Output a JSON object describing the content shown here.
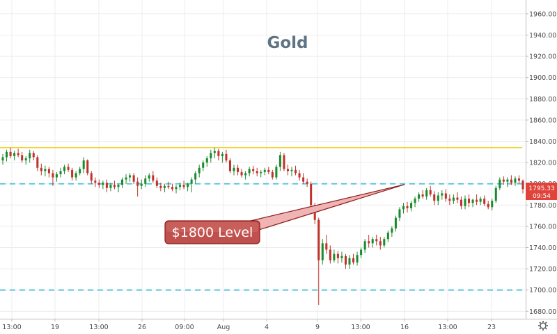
{
  "chart_data": {
    "type": "candlestick",
    "title": "Gold",
    "y_ticks": [
      1680,
      1700,
      1720,
      1740,
      1760,
      1780,
      1800,
      1820,
      1840,
      1860,
      1880,
      1900,
      1920,
      1940,
      1960
    ],
    "y_tick_labels": [
      "1680.00",
      "1700.00",
      "1720.00",
      "1740.00",
      "1760.00",
      "1780.00",
      "1800.00",
      "1820.00",
      "1840.00",
      "1860.00",
      "1880.00",
      "1900.00",
      "1920.00",
      "1940.00",
      "1960.00"
    ],
    "ylim": [
      1673,
      1973
    ],
    "x_tick_labels": [
      "13:00",
      "19",
      "13:00",
      "26",
      "09:00",
      "Aug",
      "4",
      "9",
      "13:00",
      "16",
      "13:00",
      "23"
    ],
    "horizontal_levels": [
      {
        "value": 1800,
        "style": "dashed",
        "color": "#4fc3d9"
      },
      {
        "value": 1700,
        "style": "dashed",
        "color": "#4fc3d9"
      },
      {
        "value": 1834,
        "style": "solid",
        "color": "#f2d024"
      }
    ],
    "annotation": {
      "text": "$1800 Level"
    },
    "last_price": {
      "value": "1795.33",
      "countdown": "09:54"
    },
    "candles": [
      [
        1822,
        1828,
        1818,
        1825
      ],
      [
        1825,
        1832,
        1821,
        1830
      ],
      [
        1830,
        1834,
        1824,
        1826
      ],
      [
        1826,
        1831,
        1822,
        1829
      ],
      [
        1829,
        1833,
        1825,
        1827
      ],
      [
        1827,
        1830,
        1820,
        1822
      ],
      [
        1822,
        1826,
        1818,
        1824
      ],
      [
        1824,
        1832,
        1820,
        1829
      ],
      [
        1829,
        1831,
        1822,
        1825
      ],
      [
        1825,
        1827,
        1812,
        1815
      ],
      [
        1815,
        1819,
        1808,
        1812
      ],
      [
        1812,
        1817,
        1807,
        1814
      ],
      [
        1814,
        1816,
        1806,
        1810
      ],
      [
        1810,
        1813,
        1798,
        1806
      ],
      [
        1806,
        1811,
        1802,
        1809
      ],
      [
        1809,
        1815,
        1806,
        1812
      ],
      [
        1812,
        1818,
        1809,
        1816
      ],
      [
        1816,
        1819,
        1811,
        1813
      ],
      [
        1813,
        1815,
        1803,
        1806
      ],
      [
        1806,
        1812,
        1803,
        1810
      ],
      [
        1810,
        1816,
        1808,
        1814
      ],
      [
        1814,
        1825,
        1810,
        1822
      ],
      [
        1822,
        1823,
        1808,
        1810
      ],
      [
        1810,
        1812,
        1800,
        1803
      ],
      [
        1803,
        1806,
        1797,
        1801
      ],
      [
        1801,
        1804,
        1796,
        1799
      ],
      [
        1799,
        1803,
        1795,
        1801
      ],
      [
        1801,
        1804,
        1792,
        1796
      ],
      [
        1796,
        1801,
        1793,
        1799
      ],
      [
        1799,
        1803,
        1795,
        1797
      ],
      [
        1797,
        1800,
        1792,
        1799
      ],
      [
        1799,
        1806,
        1796,
        1804
      ],
      [
        1804,
        1809,
        1800,
        1806
      ],
      [
        1806,
        1810,
        1802,
        1808
      ],
      [
        1808,
        1810,
        1800,
        1802
      ],
      [
        1802,
        1806,
        1788,
        1798
      ],
      [
        1798,
        1804,
        1795,
        1800
      ],
      [
        1800,
        1808,
        1797,
        1805
      ],
      [
        1805,
        1810,
        1802,
        1808
      ],
      [
        1808,
        1812,
        1801,
        1803
      ],
      [
        1803,
        1806,
        1796,
        1798
      ],
      [
        1798,
        1801,
        1793,
        1796
      ],
      [
        1796,
        1800,
        1792,
        1798
      ],
      [
        1798,
        1802,
        1795,
        1797
      ],
      [
        1797,
        1800,
        1793,
        1795
      ],
      [
        1795,
        1799,
        1791,
        1797
      ],
      [
        1797,
        1801,
        1794,
        1799
      ],
      [
        1799,
        1803,
        1795,
        1797
      ],
      [
        1797,
        1801,
        1793,
        1800
      ],
      [
        1800,
        1806,
        1792,
        1804
      ],
      [
        1804,
        1812,
        1800,
        1810
      ],
      [
        1810,
        1818,
        1806,
        1815
      ],
      [
        1815,
        1822,
        1812,
        1820
      ],
      [
        1820,
        1826,
        1816,
        1824
      ],
      [
        1824,
        1832,
        1820,
        1829
      ],
      [
        1829,
        1834,
        1824,
        1831
      ],
      [
        1831,
        1833,
        1822,
        1826
      ],
      [
        1826,
        1830,
        1820,
        1828
      ],
      [
        1828,
        1832,
        1820,
        1822
      ],
      [
        1822,
        1824,
        1810,
        1812
      ],
      [
        1812,
        1818,
        1808,
        1815
      ],
      [
        1815,
        1818,
        1808,
        1811
      ],
      [
        1811,
        1814,
        1806,
        1808
      ],
      [
        1808,
        1812,
        1804,
        1810
      ],
      [
        1810,
        1816,
        1807,
        1814
      ],
      [
        1814,
        1817,
        1809,
        1812
      ],
      [
        1812,
        1815,
        1807,
        1810
      ],
      [
        1810,
        1813,
        1806,
        1811
      ],
      [
        1811,
        1815,
        1808,
        1813
      ],
      [
        1813,
        1816,
        1809,
        1811
      ],
      [
        1811,
        1813,
        1804,
        1806
      ],
      [
        1806,
        1818,
        1804,
        1816
      ],
      [
        1816,
        1830,
        1812,
        1827
      ],
      [
        1827,
        1829,
        1812,
        1814
      ],
      [
        1814,
        1818,
        1808,
        1812
      ],
      [
        1812,
        1816,
        1807,
        1813
      ],
      [
        1813,
        1817,
        1808,
        1810
      ],
      [
        1810,
        1813,
        1803,
        1806
      ],
      [
        1806,
        1810,
        1800,
        1802
      ],
      [
        1802,
        1805,
        1797,
        1800
      ],
      [
        1800,
        1802,
        1776,
        1780
      ],
      [
        1780,
        1782,
        1762,
        1766
      ],
      [
        1766,
        1768,
        1686,
        1728
      ],
      [
        1728,
        1748,
        1724,
        1744
      ],
      [
        1744,
        1752,
        1734,
        1738
      ],
      [
        1738,
        1742,
        1725,
        1728
      ],
      [
        1728,
        1738,
        1726,
        1734
      ],
      [
        1734,
        1737,
        1725,
        1730
      ],
      [
        1730,
        1736,
        1726,
        1732
      ],
      [
        1732,
        1734,
        1720,
        1724
      ],
      [
        1724,
        1733,
        1720,
        1730
      ],
      [
        1730,
        1734,
        1724,
        1726
      ],
      [
        1726,
        1736,
        1723,
        1733
      ],
      [
        1733,
        1740,
        1730,
        1738
      ],
      [
        1738,
        1748,
        1735,
        1746
      ],
      [
        1746,
        1752,
        1740,
        1744
      ],
      [
        1744,
        1750,
        1740,
        1748
      ],
      [
        1748,
        1752,
        1742,
        1746
      ],
      [
        1746,
        1750,
        1738,
        1742
      ],
      [
        1742,
        1750,
        1740,
        1748
      ],
      [
        1748,
        1756,
        1745,
        1754
      ],
      [
        1754,
        1760,
        1750,
        1758
      ],
      [
        1758,
        1770,
        1755,
        1768
      ],
      [
        1768,
        1778,
        1765,
        1776
      ],
      [
        1776,
        1782,
        1772,
        1779
      ],
      [
        1779,
        1783,
        1773,
        1777
      ],
      [
        1777,
        1784,
        1774,
        1782
      ],
      [
        1782,
        1788,
        1778,
        1786
      ],
      [
        1786,
        1792,
        1783,
        1790
      ],
      [
        1790,
        1794,
        1786,
        1788
      ],
      [
        1788,
        1796,
        1785,
        1794
      ],
      [
        1794,
        1798,
        1788,
        1790
      ],
      [
        1790,
        1793,
        1780,
        1784
      ],
      [
        1784,
        1792,
        1780,
        1789
      ],
      [
        1789,
        1794,
        1785,
        1791
      ],
      [
        1791,
        1795,
        1783,
        1786
      ],
      [
        1786,
        1790,
        1780,
        1784
      ],
      [
        1784,
        1790,
        1781,
        1787
      ],
      [
        1787,
        1792,
        1782,
        1785
      ],
      [
        1785,
        1788,
        1776,
        1779
      ],
      [
        1779,
        1789,
        1776,
        1786
      ],
      [
        1786,
        1790,
        1778,
        1782
      ],
      [
        1782,
        1786,
        1778,
        1785
      ],
      [
        1785,
        1790,
        1780,
        1783
      ],
      [
        1783,
        1788,
        1780,
        1786
      ],
      [
        1786,
        1789,
        1779,
        1781
      ],
      [
        1781,
        1784,
        1776,
        1778
      ],
      [
        1778,
        1786,
        1775,
        1784
      ],
      [
        1784,
        1798,
        1782,
        1796
      ],
      [
        1796,
        1806,
        1794,
        1804
      ],
      [
        1804,
        1807,
        1799,
        1802
      ],
      [
        1802,
        1806,
        1797,
        1804
      ],
      [
        1804,
        1808,
        1799,
        1801
      ],
      [
        1801,
        1807,
        1798,
        1805
      ],
      [
        1805,
        1808,
        1800,
        1803
      ],
      [
        1803,
        1804,
        1791,
        1795
      ]
    ]
  }
}
